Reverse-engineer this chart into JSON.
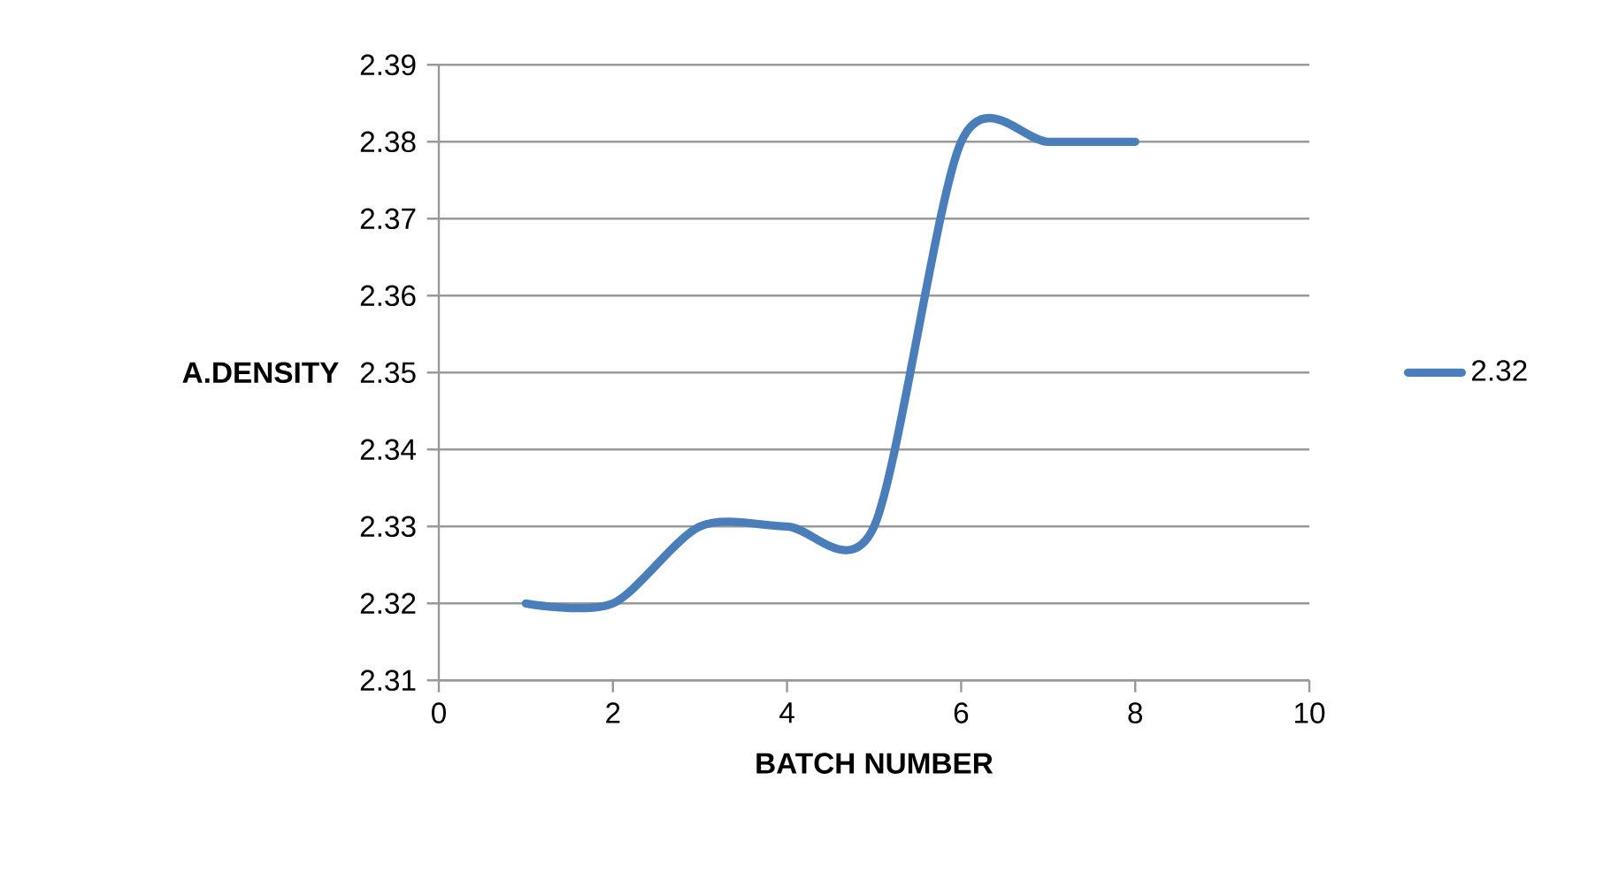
{
  "chart_data": {
    "type": "line",
    "xlabel": "BATCH NUMBER",
    "ylabel": "A.DENSITY",
    "x": [
      1,
      2,
      3,
      4,
      5,
      6,
      7,
      8
    ],
    "series": [
      {
        "name": "2.32",
        "color": "#4a7ebb",
        "values": [
          2.32,
          2.32,
          2.33,
          2.33,
          2.33,
          2.38,
          2.38,
          2.38
        ]
      }
    ],
    "xlim": [
      0,
      10
    ],
    "xticks": [
      0,
      2,
      4,
      6,
      8,
      10
    ],
    "ylim": [
      2.31,
      2.39
    ],
    "yticks": [
      2.31,
      2.32,
      2.33,
      2.34,
      2.35,
      2.36,
      2.37,
      2.38,
      2.39
    ],
    "grid": "y",
    "legend": "right",
    "marker": "none",
    "line_style": "solid"
  }
}
